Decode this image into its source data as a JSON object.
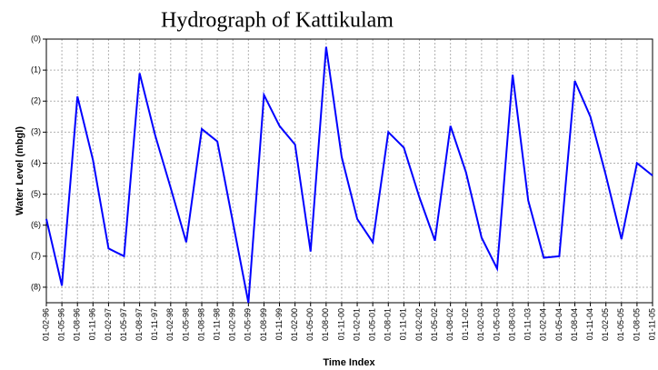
{
  "chart_data": {
    "type": "line",
    "title": "Hydrograph of Kattikulam",
    "xlabel": "Time Index",
    "ylabel": "Water Level (mbgl)",
    "categories": [
      "01-02-96",
      "01-05-96",
      "01-08-96",
      "01-11-96",
      "01-02-97",
      "01-05-97",
      "01-08-97",
      "01-11-97",
      "01-02-98",
      "01-05-98",
      "01-08-98",
      "01-11-98",
      "01-02-99",
      "01-05-99",
      "01-08-99",
      "01-11-99",
      "01-02-00",
      "01-05-00",
      "01-08-00",
      "01-11-00",
      "01-02-01",
      "01-05-01",
      "01-08-01",
      "01-11-01",
      "01-02-02",
      "01-05-02",
      "01-08-02",
      "01-11-02",
      "01-02-03",
      "01-05-03",
      "01-08-03",
      "01-11-03",
      "01-02-04",
      "01-05-04",
      "01-08-04",
      "01-11-04",
      "01-02-05",
      "01-05-05",
      "01-08-05",
      "01-11-05"
    ],
    "values": [
      5.8,
      7.95,
      1.85,
      3.9,
      6.75,
      7.0,
      1.1,
      3.1,
      4.8,
      6.55,
      2.9,
      3.3,
      5.9,
      8.5,
      1.8,
      2.8,
      3.4,
      6.85,
      0.25,
      3.8,
      5.8,
      6.55,
      3.0,
      3.5,
      5.1,
      6.5,
      2.8,
      4.3,
      6.4,
      7.4,
      1.15,
      5.2,
      7.05,
      7.0,
      1.35,
      2.5,
      4.4,
      6.45,
      4.0,
      4.4
    ],
    "color": "#0000ff",
    "ylim": [
      0,
      8.5
    ],
    "inverted": true,
    "yticks": [
      {
        "value": 0,
        "label": "(0)"
      },
      {
        "value": 1,
        "label": "(1)"
      },
      {
        "value": 2,
        "label": "(2)"
      },
      {
        "value": 3,
        "label": "(3)"
      },
      {
        "value": 4,
        "label": "(4)"
      },
      {
        "value": 5,
        "label": "(5)"
      },
      {
        "value": 6,
        "label": "(6)"
      },
      {
        "value": 7,
        "label": "(7)"
      },
      {
        "value": 8,
        "label": "(8)"
      }
    ],
    "grid": true
  }
}
